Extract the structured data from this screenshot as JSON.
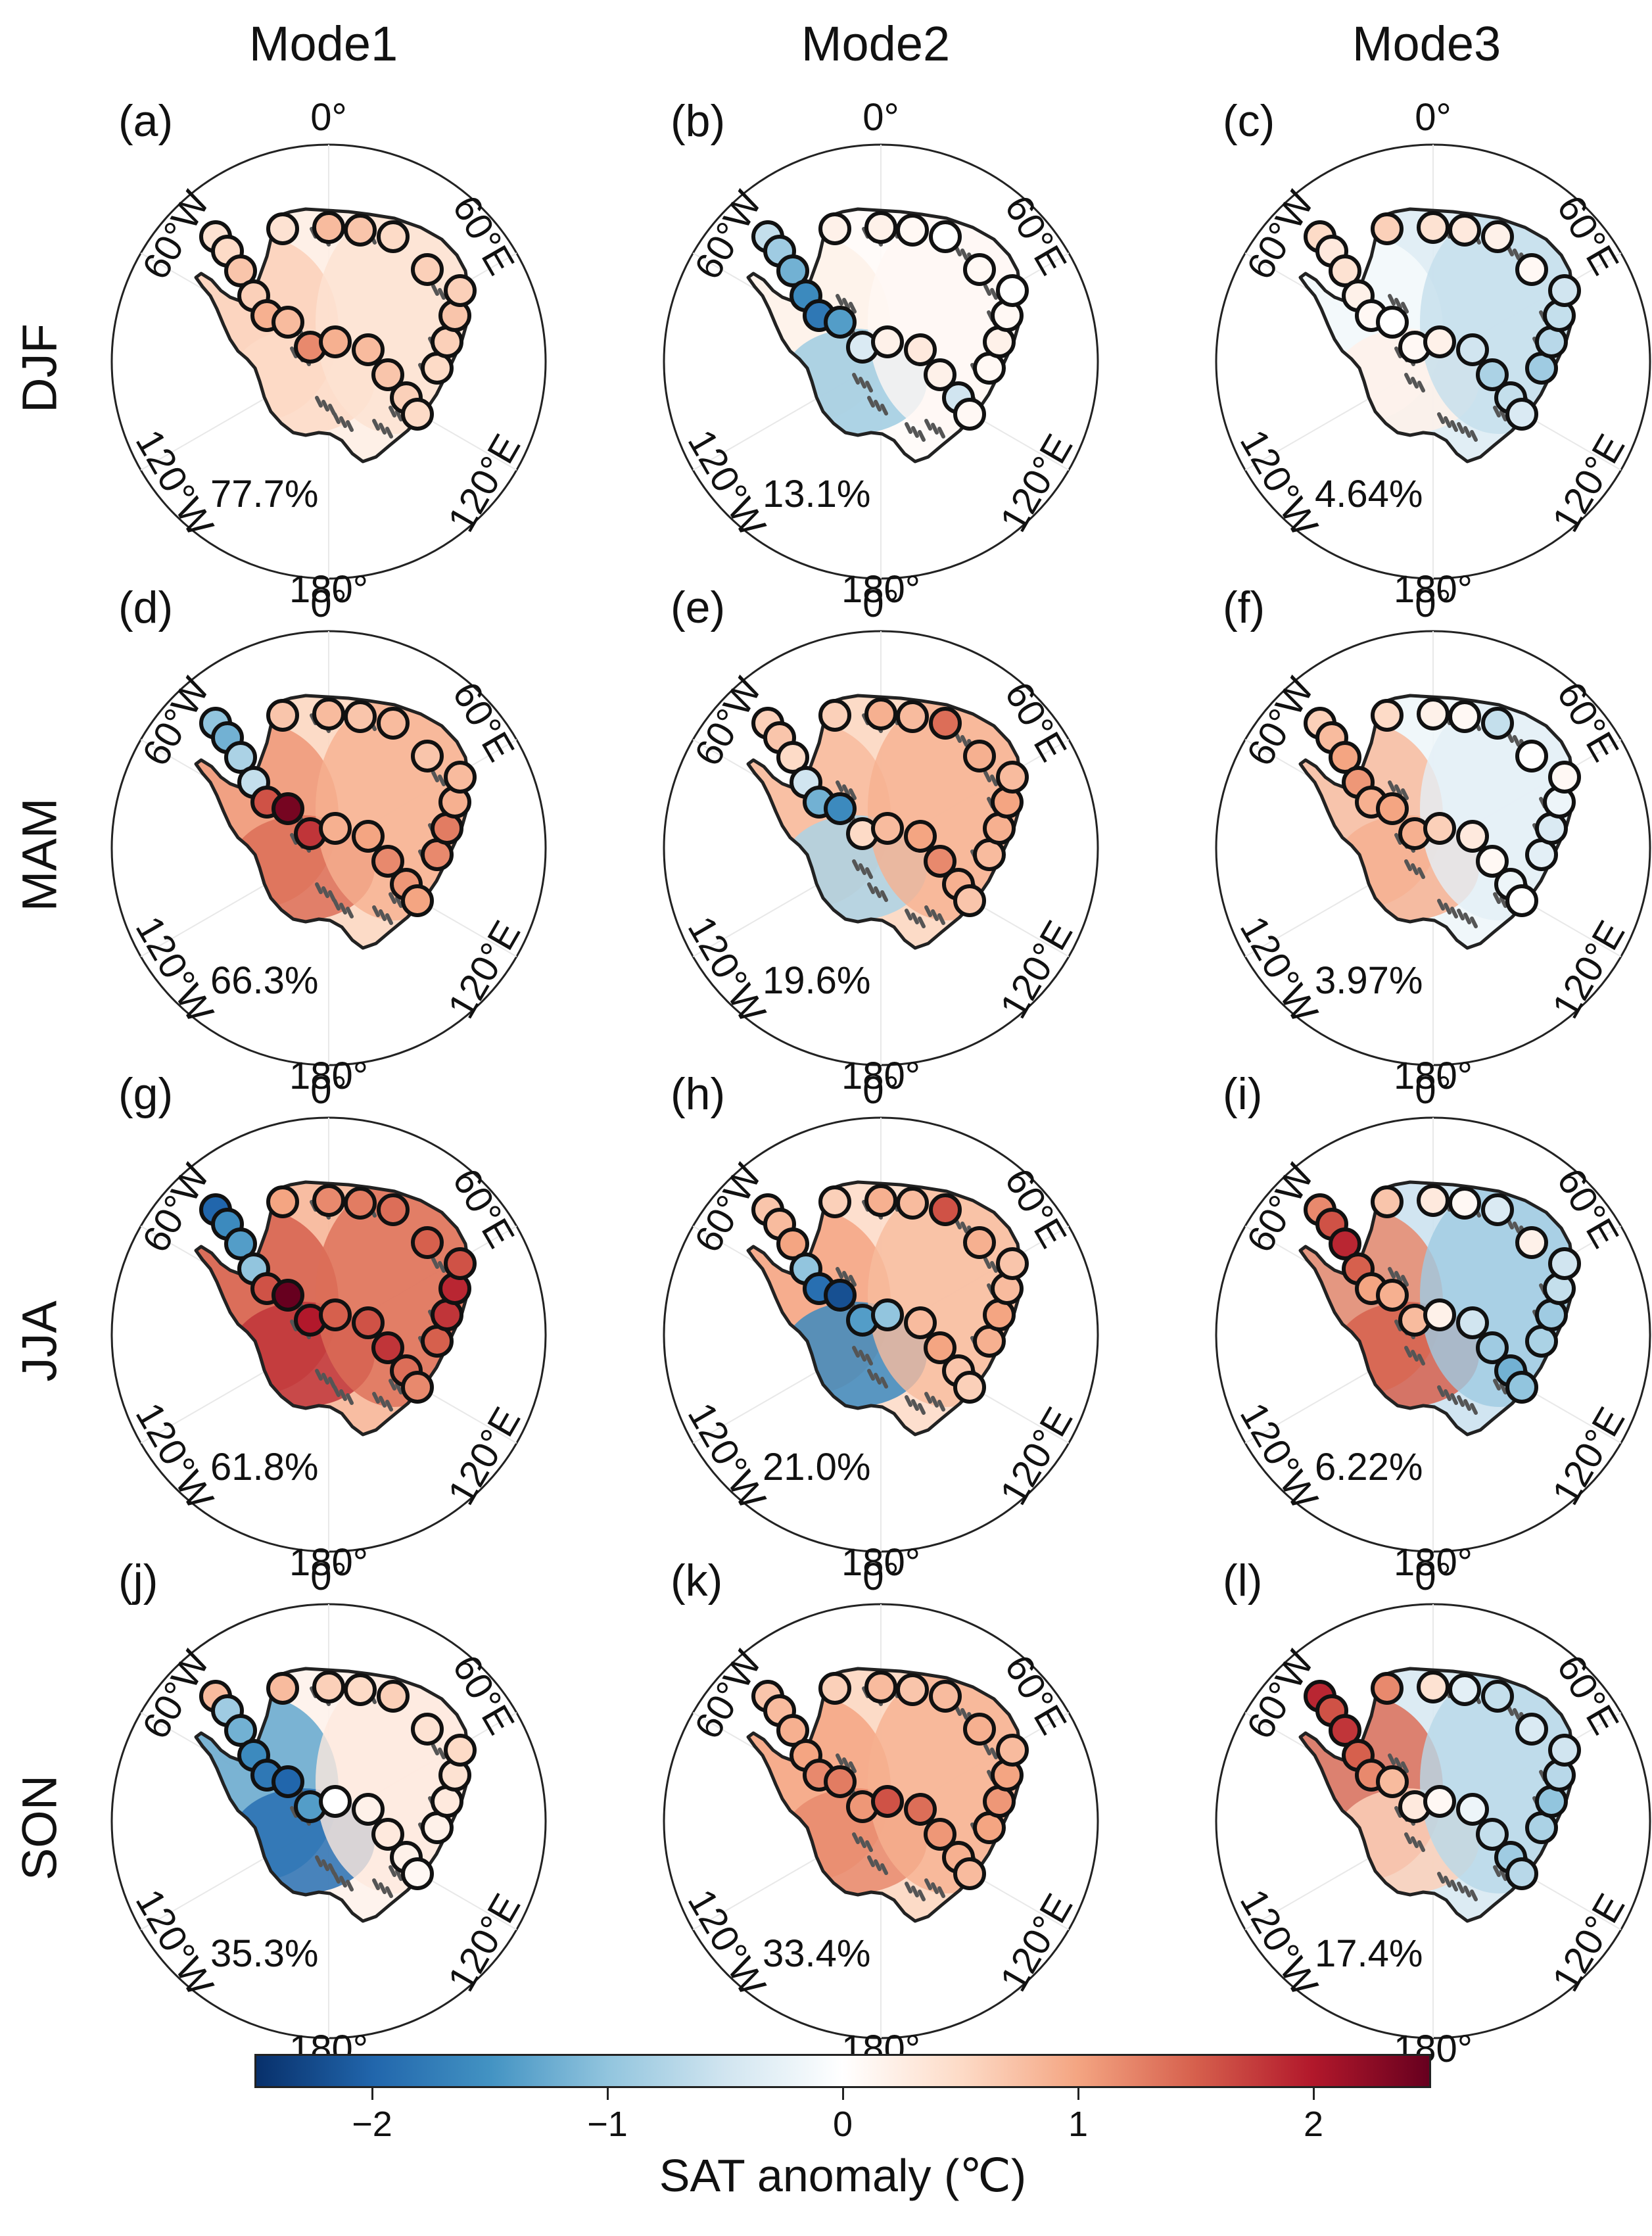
{
  "column_titles": [
    "Mode1",
    "Mode2",
    "Mode3"
  ],
  "row_titles": [
    "DJF",
    "MAM",
    "JJA",
    "SON"
  ],
  "longitude_labels": {
    "top": "0°",
    "top_right": "60°E",
    "bottom_right": "120°E",
    "bottom": "180°",
    "bottom_left": "120°W",
    "top_left": "60°W"
  },
  "panels": [
    {
      "label": "(a)",
      "variance": "77.7%",
      "mode": "Mode1",
      "season": "DJF"
    },
    {
      "label": "(b)",
      "variance": "13.1%",
      "mode": "Mode2",
      "season": "DJF"
    },
    {
      "label": "(c)",
      "variance": "4.64%",
      "mode": "Mode3",
      "season": "DJF"
    },
    {
      "label": "(d)",
      "variance": "66.3%",
      "mode": "Mode1",
      "season": "MAM"
    },
    {
      "label": "(e)",
      "variance": "19.6%",
      "mode": "Mode2",
      "season": "MAM"
    },
    {
      "label": "(f)",
      "variance": "3.97%",
      "mode": "Mode3",
      "season": "MAM"
    },
    {
      "label": "(g)",
      "variance": "61.8%",
      "mode": "Mode1",
      "season": "JJA"
    },
    {
      "label": "(h)",
      "variance": "21.0%",
      "mode": "Mode2",
      "season": "JJA"
    },
    {
      "label": "(i)",
      "variance": "6.22%",
      "mode": "Mode3",
      "season": "JJA"
    },
    {
      "label": "(j)",
      "variance": "35.3%",
      "mode": "Mode1",
      "season": "SON"
    },
    {
      "label": "(k)",
      "variance": "33.4%",
      "mode": "Mode2",
      "season": "SON"
    },
    {
      "label": "(l)",
      "variance": "17.4%",
      "mode": "Mode3",
      "season": "SON"
    }
  ],
  "colorbar": {
    "label": "SAT anomaly (℃)",
    "range": [
      -2.5,
      2.5
    ],
    "ticks": [
      -2,
      -1,
      0,
      1,
      2
    ],
    "tick_labels": [
      "−2",
      "−1",
      "0",
      "1",
      "2"
    ],
    "colors": [
      "#08306b",
      "#2166ac",
      "#4393c3",
      "#92c5de",
      "#d1e5f0",
      "#ffffff",
      "#fddbc7",
      "#f4a582",
      "#d6604d",
      "#b2182b",
      "#67001f"
    ]
  }
}
